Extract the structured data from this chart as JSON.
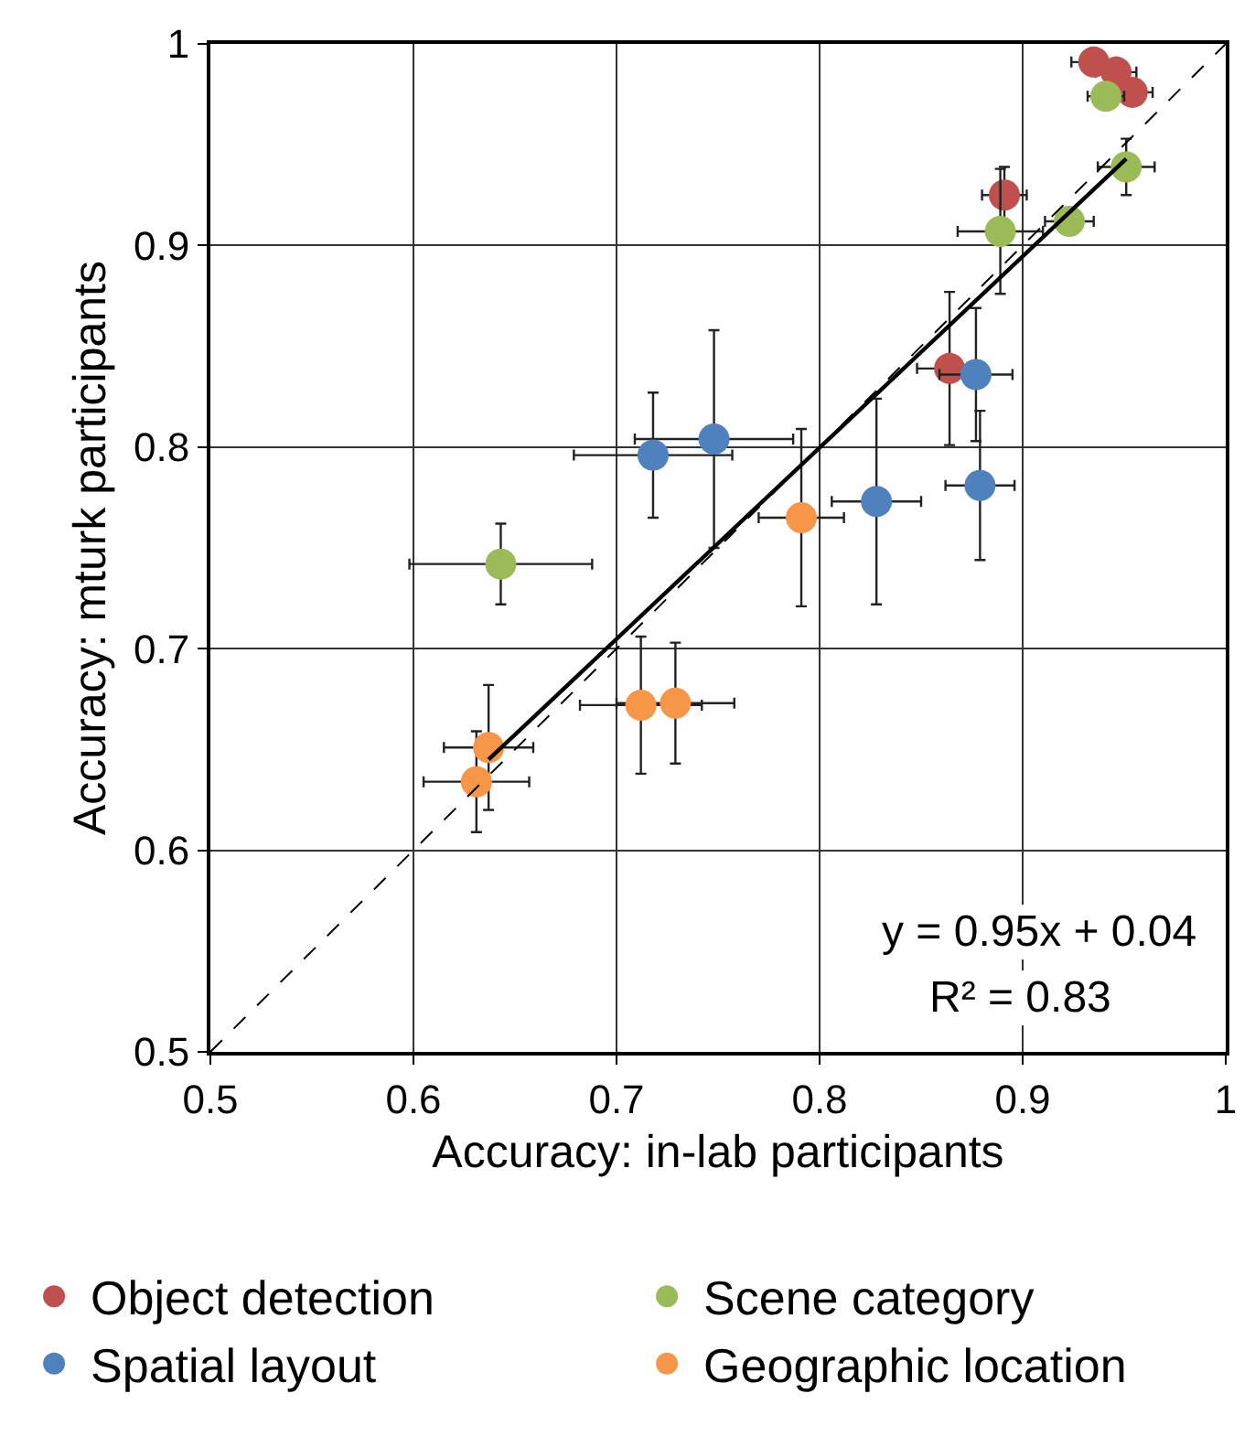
{
  "chart_data": {
    "type": "scatter",
    "xlabel": "Accuracy: in-lab participants",
    "ylabel": "Accuracy: mturk participants",
    "xlim": [
      0.5,
      1
    ],
    "ylim": [
      0.5,
      1
    ],
    "xticks": [
      0.5,
      0.6,
      0.7,
      0.8,
      0.9,
      1
    ],
    "yticks": [
      0.5,
      0.6,
      0.7,
      0.8,
      0.9,
      1
    ],
    "grid": true,
    "legend": "bottom",
    "marker": "circle",
    "annotations": [
      "y = 0.95x + 0.04",
      "R² = 0.83"
    ],
    "series": [
      {
        "name": "Object detection",
        "color": "#c0504d",
        "x": [
          0.935,
          0.946,
          0.954,
          0.891,
          0.864
        ],
        "values": [
          0.991,
          0.986,
          0.976,
          0.925,
          0.839
        ],
        "errors": [
          null,
          null,
          0.006,
          0.014,
          0.038
        ],
        "xerrors": [
          0.011,
          0.01,
          0.01,
          0.011,
          0.016
        ]
      },
      {
        "name": "Scene category",
        "color": "#9bbb59",
        "x": [
          0.941,
          0.951,
          0.889,
          0.923,
          0.643
        ],
        "values": [
          0.974,
          0.939,
          0.907,
          0.912,
          0.742
        ],
        "errors": [
          null,
          0.014,
          0.031,
          0.006,
          0.02
        ],
        "xerrors": [
          0.009,
          0.014,
          0.021,
          0.012,
          0.045
        ]
      },
      {
        "name": "Spatial layout",
        "color": "#4f81bd",
        "x": [
          0.877,
          0.879,
          0.828,
          0.718,
          0.748
        ],
        "values": [
          0.836,
          0.781,
          0.773,
          0.796,
          0.804
        ],
        "errors": [
          0.033,
          0.037,
          0.051,
          0.031,
          0.054
        ],
        "xerrors": [
          0.018,
          0.017,
          0.022,
          0.039,
          0.039
        ]
      },
      {
        "name": "Geographic location",
        "color": "#f79646",
        "x": [
          0.791,
          0.712,
          0.729,
          0.637,
          0.631
        ],
        "values": [
          0.765,
          0.672,
          0.673,
          0.651,
          0.634
        ],
        "errors": [
          0.044,
          0.034,
          0.03,
          0.031,
          0.025
        ],
        "xerrors": [
          0.021,
          0.03,
          0.029,
          0.022,
          0.026
        ]
      },
      {
        "type": "line",
        "color": "#000000",
        "line_style": "solid",
        "marker": "none",
        "x": [
          0.637,
          0.951
        ],
        "values": [
          0.645,
          0.943
        ]
      },
      {
        "type": "line",
        "color": "#000000",
        "line_style": "dashed",
        "marker": "none",
        "x": [
          0.5,
          1
        ],
        "values": [
          0.5,
          1
        ]
      }
    ]
  }
}
